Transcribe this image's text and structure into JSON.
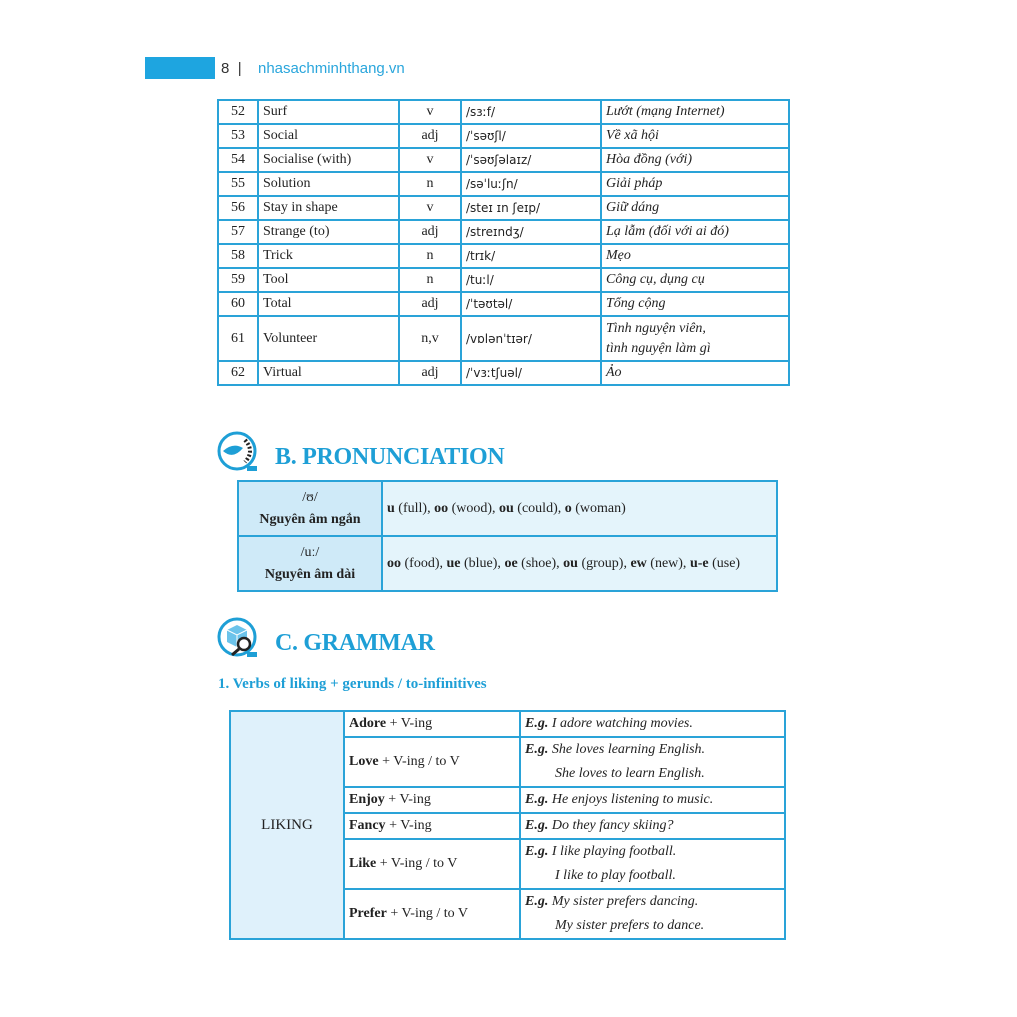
{
  "header": {
    "page_number": "8",
    "separator": "|",
    "site": "nhasachminhthang.vn"
  },
  "vocab": [
    {
      "num": "52",
      "word": "Surf",
      "pos": "v",
      "ipa": "/sɜːf/",
      "meaning": "Lướt (mạng Internet)"
    },
    {
      "num": "53",
      "word": "Social",
      "pos": "adj",
      "ipa": "/ˈsəʊʃl/",
      "meaning": "Về xã hội"
    },
    {
      "num": "54",
      "word": "Socialise (with)",
      "pos": "v",
      "ipa": "/ˈsəʊʃəlaɪz/",
      "meaning": "Hòa đồng (với)"
    },
    {
      "num": "55",
      "word": "Solution",
      "pos": "n",
      "ipa": "/səˈluːʃn/",
      "meaning": "Giải pháp"
    },
    {
      "num": "56",
      "word": "Stay in shape",
      "pos": "v",
      "ipa": "/steɪ ɪn ʃeɪp/",
      "meaning": "Giữ dáng"
    },
    {
      "num": "57",
      "word": "Strange (to)",
      "pos": "adj",
      "ipa": "/streɪndʒ/",
      "meaning": "Lạ lẫm (đối với ai đó)"
    },
    {
      "num": "58",
      "word": "Trick",
      "pos": "n",
      "ipa": "/trɪk/",
      "meaning": "Mẹo"
    },
    {
      "num": "59",
      "word": "Tool",
      "pos": "n",
      "ipa": "/tuːl/",
      "meaning": "Công cụ, dụng cụ"
    },
    {
      "num": "60",
      "word": "Total",
      "pos": "adj",
      "ipa": "/ˈtəʊtəl/",
      "meaning": "Tổng cộng"
    },
    {
      "num": "61",
      "word": "Volunteer",
      "pos": "n,v",
      "ipa": "/vɒlənˈtɪər/",
      "meaning": "Tình nguyện viên,",
      "meaning2": "tình nguyện làm gì"
    },
    {
      "num": "62",
      "word": "Virtual",
      "pos": "adj",
      "ipa": "/ˈvɜːtʃuəl/",
      "meaning": "Ảo"
    }
  ],
  "pronunciation": {
    "title": "B. PRONUNCIATION",
    "icon": "speaking-lips-icon",
    "rows": [
      {
        "symbol": "/ʊ/",
        "label": "Nguyên âm ngắn",
        "examples": [
          [
            "u",
            " (full), "
          ],
          [
            "oo",
            " (wood), "
          ],
          [
            "ou",
            " (could), "
          ],
          [
            "o",
            " (woman)"
          ]
        ]
      },
      {
        "symbol": "/uː/",
        "label": "Nguyên âm dài",
        "examples": [
          [
            "oo",
            " (food), "
          ],
          [
            "ue",
            " (blue), "
          ],
          [
            "oe",
            " (shoe), "
          ],
          [
            "ou",
            " (group), "
          ],
          [
            "ew",
            " (new), "
          ],
          [
            "u-e",
            " (use)"
          ]
        ]
      }
    ]
  },
  "grammar": {
    "title": "C. GRAMMAR",
    "icon": "cube-magnifier-icon",
    "subtitle": "1. Verbs of liking + gerunds / to-infinitives",
    "category": "LIKING",
    "eg": "E.g.",
    "rows": [
      {
        "verb": "Adore",
        "pattern": " + V-ing",
        "examples": [
          "I adore watching movies."
        ]
      },
      {
        "verb": "Love",
        "pattern": " + V-ing / to V",
        "examples": [
          "She loves learning English.",
          "She loves to learn English."
        ]
      },
      {
        "verb": "Enjoy",
        "pattern": " + V-ing",
        "examples": [
          "He enjoys listening to music."
        ]
      },
      {
        "verb": "Fancy",
        "pattern": " + V-ing",
        "examples": [
          "Do they fancy skiing?"
        ]
      },
      {
        "verb": "Like",
        "pattern": " + V-ing / to V",
        "examples": [
          "I like playing football.",
          "I like to play football."
        ]
      },
      {
        "verb": "Prefer",
        "pattern": " + V-ing / to V",
        "examples": [
          "My sister prefers dancing.",
          "My sister prefers to dance."
        ]
      }
    ]
  },
  "colors": {
    "accent": "#1e9fd6",
    "border": "#2aa3d8",
    "cell_bg": "#dff1fb"
  }
}
